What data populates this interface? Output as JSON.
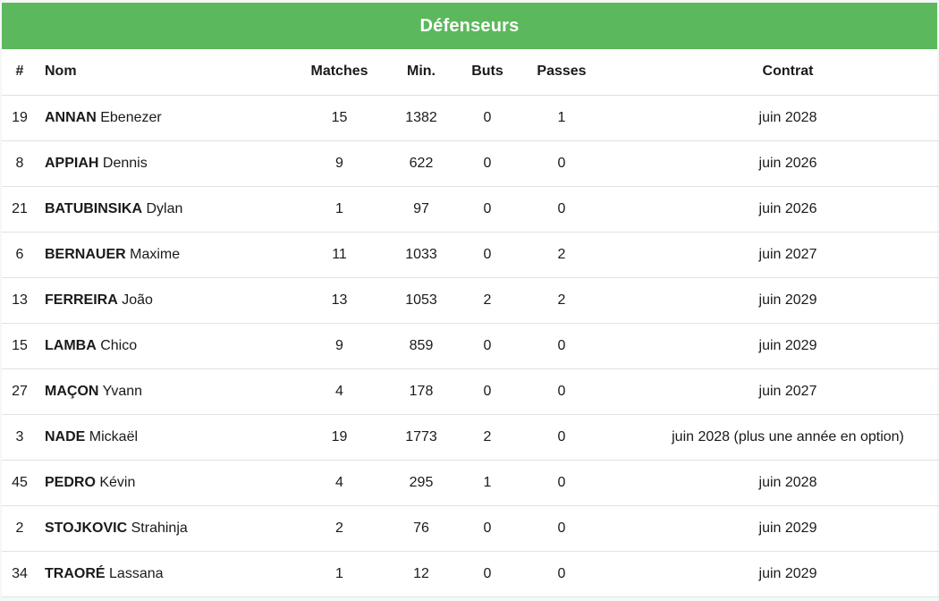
{
  "table": {
    "title": "Défenseurs",
    "headers": [
      "#",
      "Nom",
      "Matches",
      "Min.",
      "Buts",
      "Passes",
      "Contrat"
    ],
    "rows": [
      {
        "num": "19",
        "last": "ANNAN",
        "first": "Ebenezer",
        "matches": "15",
        "minutes": "1382",
        "goals": "0",
        "assists": "1",
        "contract": "juin 2028"
      },
      {
        "num": "8",
        "last": "APPIAH",
        "first": "Dennis",
        "matches": "9",
        "minutes": "622",
        "goals": "0",
        "assists": "0",
        "contract": "juin 2026"
      },
      {
        "num": "21",
        "last": "BATUBINSIKA",
        "first": "Dylan",
        "matches": "1",
        "minutes": "97",
        "goals": "0",
        "assists": "0",
        "contract": "juin 2026"
      },
      {
        "num": "6",
        "last": "BERNAUER",
        "first": "Maxime",
        "matches": "11",
        "minutes": "1033",
        "goals": "0",
        "assists": "2",
        "contract": "juin 2027"
      },
      {
        "num": "13",
        "last": "FERREIRA",
        "first": "João",
        "matches": "13",
        "minutes": "1053",
        "goals": "2",
        "assists": "2",
        "contract": "juin 2029"
      },
      {
        "num": "15",
        "last": "LAMBA",
        "first": "Chico",
        "matches": "9",
        "minutes": "859",
        "goals": "0",
        "assists": "0",
        "contract": "juin 2029"
      },
      {
        "num": "27",
        "last": "MAÇON",
        "first": "Yvann",
        "matches": "4",
        "minutes": "178",
        "goals": "0",
        "assists": "0",
        "contract": "juin 2027"
      },
      {
        "num": "3",
        "last": "NADE",
        "first": "Mickaël",
        "matches": "19",
        "minutes": "1773",
        "goals": "2",
        "assists": "0",
        "contract": "juin 2028 (plus une année en option)"
      },
      {
        "num": "45",
        "last": "PEDRO",
        "first": "Kévin",
        "matches": "4",
        "minutes": "295",
        "goals": "1",
        "assists": "0",
        "contract": "juin 2028"
      },
      {
        "num": "2",
        "last": "STOJKOVIC",
        "first": "Strahinja",
        "matches": "2",
        "minutes": "76",
        "goals": "0",
        "assists": "0",
        "contract": "juin 2029"
      },
      {
        "num": "34",
        "last": "TRAORÉ",
        "first": "Lassana",
        "matches": "1",
        "minutes": "12",
        "goals": "0",
        "assists": "0",
        "contract": "juin 2029"
      }
    ]
  },
  "colors": {
    "header_bg": "#5cb85c",
    "header_text": "#ffffff",
    "row_border": "#dee2e6"
  }
}
